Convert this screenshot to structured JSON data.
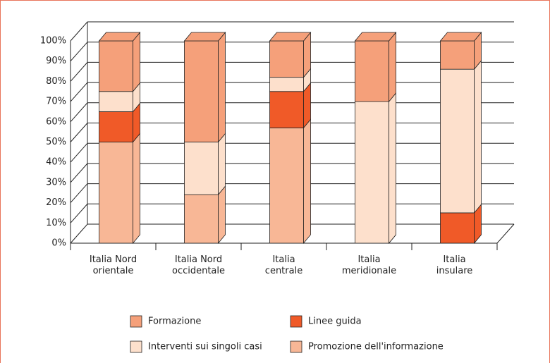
{
  "chart_data": {
    "type": "stacked-bar-3d",
    "categories": [
      "Italia Nord\norientale",
      "Italia Nord\noccidentale",
      "Italia\ncentrale",
      "Italia\nmeridionale",
      "Italia\ninsulare"
    ],
    "series": [
      {
        "name": "Promozione dell'informazione",
        "color": "#f8b796",
        "values": [
          50,
          24,
          57,
          0,
          0
        ]
      },
      {
        "name": "Linee guida",
        "color": "#f05a28",
        "values": [
          15,
          0,
          18,
          0,
          15
        ]
      },
      {
        "name": "Interventi sui singoli casi",
        "color": "#fde0cc",
        "values": [
          10,
          26,
          7,
          70,
          71
        ]
      },
      {
        "name": "Formazione",
        "color": "#f5a07a",
        "values": [
          25,
          50,
          18,
          30,
          14
        ]
      }
    ],
    "ylim": [
      0,
      100
    ],
    "yticks": [
      {
        "value": 0,
        "label": "0%"
      },
      {
        "value": 10,
        "label": "10%"
      },
      {
        "value": 20,
        "label": "20%"
      },
      {
        "value": 30,
        "label": "30%"
      },
      {
        "value": 40,
        "label": "40%"
      },
      {
        "value": 50,
        "label": "50%"
      },
      {
        "value": 60,
        "label": "60%"
      },
      {
        "value": 70,
        "label": "70%"
      },
      {
        "value": 80,
        "label": "80%"
      },
      {
        "value": 90,
        "label": "90%"
      },
      {
        "value": 100,
        "label": "100%"
      }
    ],
    "grid": true
  }
}
